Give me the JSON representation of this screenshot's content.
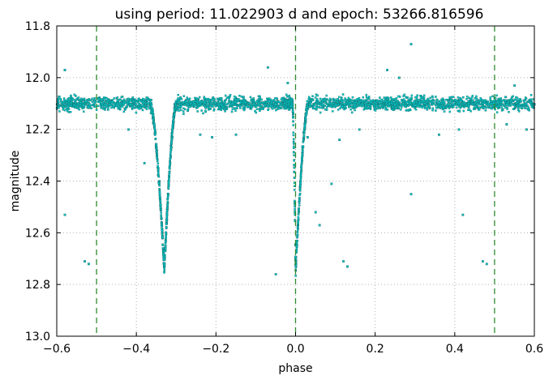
{
  "chart_data": {
    "type": "scatter",
    "title": "using period: 11.022903 d and epoch: 53266.816596",
    "xlabel": "phase",
    "ylabel": "magnitude",
    "xlim": [
      -0.6,
      0.6
    ],
    "ylim": [
      11.8,
      13.0
    ],
    "y_inverted": true,
    "grid": true,
    "x_ticks": [
      -0.6,
      -0.4,
      -0.2,
      0.0,
      0.2,
      0.4,
      0.6
    ],
    "x_tick_labels": [
      "−0.6",
      "−0.4",
      "−0.2",
      "0.0",
      "0.2",
      "0.4",
      "0.6"
    ],
    "y_ticks": [
      11.8,
      12.0,
      12.2,
      12.4,
      12.6,
      12.8,
      13.0
    ],
    "y_tick_labels": [
      "11.8",
      "12.0",
      "12.2",
      "12.4",
      "12.6",
      "12.8",
      "13.0"
    ],
    "vertical_lines": [
      -0.5,
      0.0,
      0.5
    ],
    "colors": {
      "points": "#00c8c8",
      "point_edge": "#1a6060",
      "vlines": "#2e8b2e",
      "grid": "#b0b0b0"
    },
    "light_curve": {
      "baseline_mag": 12.1,
      "scatter": 0.04,
      "primary_eclipse": {
        "center_phase": 0.0,
        "min_mag": 12.75
      },
      "secondary_eclipse": {
        "center_phase": -0.33,
        "min_mag": 12.75
      }
    },
    "outliers": [
      {
        "x": -0.58,
        "y": 12.53
      },
      {
        "x": -0.58,
        "y": 11.97
      },
      {
        "x": -0.52,
        "y": 12.72
      },
      {
        "x": -0.53,
        "y": 12.71
      },
      {
        "x": -0.42,
        "y": 12.2
      },
      {
        "x": -0.38,
        "y": 12.33
      },
      {
        "x": -0.31,
        "y": 12.23
      },
      {
        "x": -0.24,
        "y": 12.22
      },
      {
        "x": -0.21,
        "y": 12.23
      },
      {
        "x": -0.15,
        "y": 12.22
      },
      {
        "x": -0.07,
        "y": 11.96
      },
      {
        "x": -0.05,
        "y": 12.76
      },
      {
        "x": -0.02,
        "y": 12.02
      },
      {
        "x": 0.03,
        "y": 12.23
      },
      {
        "x": 0.05,
        "y": 12.52
      },
      {
        "x": 0.06,
        "y": 12.57
      },
      {
        "x": 0.09,
        "y": 12.41
      },
      {
        "x": 0.11,
        "y": 12.24
      },
      {
        "x": 0.12,
        "y": 12.71
      },
      {
        "x": 0.13,
        "y": 12.73
      },
      {
        "x": 0.16,
        "y": 12.2
      },
      {
        "x": 0.23,
        "y": 11.97
      },
      {
        "x": 0.26,
        "y": 12.0
      },
      {
        "x": 0.29,
        "y": 11.87
      },
      {
        "x": 0.29,
        "y": 12.45
      },
      {
        "x": 0.36,
        "y": 12.22
      },
      {
        "x": 0.41,
        "y": 12.2
      },
      {
        "x": 0.42,
        "y": 12.53
      },
      {
        "x": 0.47,
        "y": 12.71
      },
      {
        "x": 0.48,
        "y": 12.72
      },
      {
        "x": 0.53,
        "y": 12.18
      },
      {
        "x": 0.55,
        "y": 12.03
      },
      {
        "x": 0.58,
        "y": 12.2
      }
    ]
  }
}
